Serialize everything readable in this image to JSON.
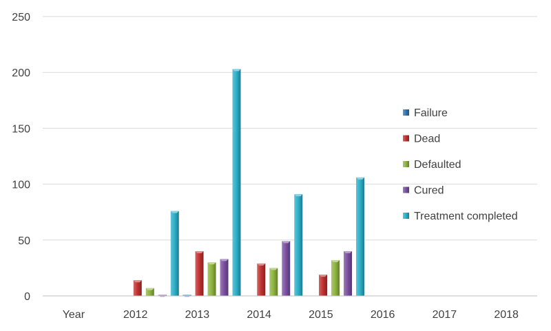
{
  "chart_data": {
    "type": "bar",
    "categories": [
      "Year",
      "2012",
      "2013",
      "2014",
      "2015",
      "2016",
      "2017",
      "2018"
    ],
    "series": [
      {
        "name": "Failure",
        "values": [
          0,
          0,
          1,
          0,
          0,
          0,
          0,
          0
        ],
        "color": "#2E75B6"
      },
      {
        "name": "Dead",
        "values": [
          0,
          14,
          40,
          29,
          19,
          0,
          0,
          0
        ],
        "color": "#C0312F"
      },
      {
        "name": "Defaulted",
        "values": [
          0,
          7,
          30,
          25,
          32,
          0,
          0,
          0
        ],
        "color": "#8DB43E"
      },
      {
        "name": "Cured",
        "values": [
          0,
          1,
          33,
          49,
          40,
          0,
          0,
          0
        ],
        "color": "#7A4FA0"
      },
      {
        "name": "Treatment completed",
        "values": [
          0,
          76,
          203,
          91,
          106,
          0,
          0,
          0
        ],
        "color": "#2BAFC8"
      }
    ],
    "ylim": [
      0,
      250
    ],
    "yticks": [
      0,
      50,
      100,
      150,
      200,
      250
    ],
    "grid": true,
    "legend_position": "right"
  }
}
